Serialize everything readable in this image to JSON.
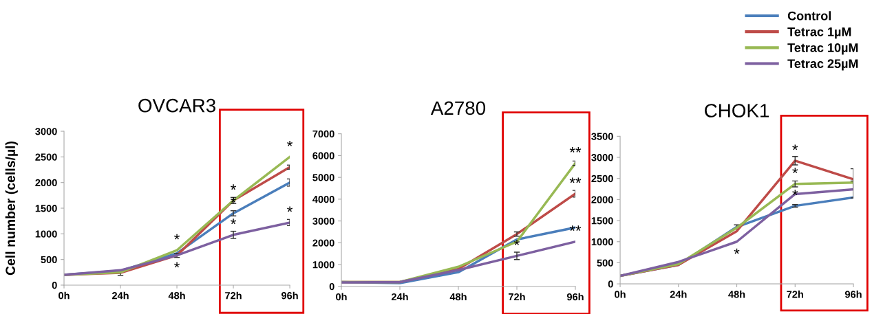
{
  "chart_data": [
    {
      "type": "line",
      "title": "OVCAR3",
      "ylabel": "Cell number (cells/µl)",
      "x": [
        0,
        24,
        48,
        72,
        96
      ],
      "xlim": [
        0,
        96
      ],
      "xticks": [
        {
          "value": 0,
          "label": "0h"
        },
        {
          "value": 24,
          "label": "24h"
        },
        {
          "value": 48,
          "label": "48h"
        },
        {
          "value": 72,
          "label": "72h"
        },
        {
          "value": 96,
          "label": "96h"
        }
      ],
      "ylim": [
        0,
        3000
      ],
      "yticks": [
        0,
        500,
        1000,
        1500,
        2000,
        2500,
        3000
      ],
      "grid": false,
      "legend": "top right",
      "marker": "none",
      "line_style": "solid",
      "series": [
        {
          "name": "Control",
          "color": "#4a7ebb",
          "values": [
            200,
            280,
            620,
            1400,
            2000
          ],
          "errors": [
            null,
            null,
            null,
            50,
            70
          ]
        },
        {
          "name": "Tetrac 1µM",
          "color": "#be4b48",
          "values": [
            200,
            240,
            580,
            1650,
            2300
          ],
          "errors": [
            null,
            50,
            40,
            null,
            40
          ]
        },
        {
          "name": "Tetrac 10µM",
          "color": "#98b954",
          "values": [
            200,
            250,
            680,
            1650,
            2500
          ],
          "errors": [
            null,
            null,
            null,
            60,
            null
          ]
        },
        {
          "name": "Tetrac 25µM",
          "color": "#7d60a0",
          "values": [
            200,
            290,
            580,
            980,
            1220
          ],
          "errors": [
            null,
            null,
            null,
            70,
            60
          ]
        }
      ],
      "annotations": [
        {
          "text": "*",
          "x": 48,
          "y": 680
        },
        {
          "text": "*",
          "x": 48,
          "y": 580
        },
        {
          "text": "*",
          "x": 72,
          "y": 1650
        },
        {
          "text": "*",
          "x": 72,
          "y": 1400
        },
        {
          "text": "*",
          "x": 72,
          "y": 980
        },
        {
          "text": "*",
          "x": 96,
          "y": 2500
        },
        {
          "text": "*",
          "x": 96,
          "y": 1220
        }
      ]
    },
    {
      "type": "line",
      "title": "A2780",
      "x": [
        0,
        24,
        48,
        72,
        96
      ],
      "xlim": [
        0,
        96
      ],
      "xticks": [
        {
          "value": 0,
          "label": "0h"
        },
        {
          "value": 24,
          "label": "24h"
        },
        {
          "value": 48,
          "label": "48h"
        },
        {
          "value": 72,
          "label": "72h"
        },
        {
          "value": 96,
          "label": "96h"
        }
      ],
      "ylim": [
        0,
        7000
      ],
      "yticks": [
        0,
        1000,
        2000,
        3000,
        4000,
        5000,
        6000,
        7000
      ],
      "grid": false,
      "marker": "none",
      "line_style": "solid",
      "series": [
        {
          "color": "#4a7ebb",
          "values": [
            200,
            150,
            650,
            2150,
            2700
          ]
        },
        {
          "color": "#be4b48",
          "values": [
            200,
            200,
            800,
            2400,
            4250
          ],
          "errors": [
            null,
            null,
            null,
            100,
            150
          ]
        },
        {
          "color": "#98b954",
          "values": [
            200,
            200,
            900,
            2050,
            5650
          ],
          "errors": [
            null,
            null,
            null,
            null,
            100
          ]
        },
        {
          "color": "#7d60a0",
          "values": [
            180,
            200,
            750,
            1400,
            2050
          ],
          "errors": [
            null,
            null,
            null,
            170,
            null
          ]
        }
      ],
      "annotations": [
        {
          "text": "*",
          "x": 72,
          "y": 1400
        },
        {
          "text": "**",
          "x": 96,
          "y": 5650
        },
        {
          "text": "**",
          "x": 96,
          "y": 4250
        },
        {
          "text": "**",
          "x": 96,
          "y": 2050
        }
      ]
    },
    {
      "type": "line",
      "title": "CHOK1",
      "x": [
        0,
        24,
        48,
        72,
        96
      ],
      "xlim": [
        0,
        96
      ],
      "xticks": [
        {
          "value": 0,
          "label": "0h"
        },
        {
          "value": 24,
          "label": "24h"
        },
        {
          "value": 48,
          "label": "48h"
        },
        {
          "value": 72,
          "label": "72h"
        },
        {
          "value": 96,
          "label": "96h"
        }
      ],
      "ylim": [
        0,
        3500
      ],
      "yticks": [
        0,
        500,
        1000,
        1500,
        2000,
        2500,
        3000,
        3500
      ],
      "grid": false,
      "marker": "none",
      "line_style": "solid",
      "series": [
        {
          "color": "#4a7ebb",
          "values": [
            190,
            450,
            1350,
            1850,
            2050
          ],
          "errors": [
            null,
            null,
            50,
            30,
            null
          ]
        },
        {
          "color": "#be4b48",
          "values": [
            190,
            450,
            1250,
            2920,
            2480
          ],
          "errors": [
            null,
            null,
            null,
            100,
            250
          ]
        },
        {
          "color": "#98b954",
          "values": [
            190,
            470,
            1330,
            2370,
            2400
          ],
          "errors": [
            null,
            null,
            null,
            70,
            null
          ]
        },
        {
          "color": "#7d60a0",
          "values": [
            190,
            520,
            1000,
            2130,
            2240
          ],
          "errors": [
            null,
            null,
            null,
            null,
            200
          ]
        }
      ],
      "annotations": [
        {
          "text": "*",
          "x": 72,
          "y": 2920
        },
        {
          "text": "*",
          "x": 72,
          "y": 2370
        },
        {
          "text": "*",
          "x": 72,
          "y": 1850
        },
        {
          "text": "*",
          "x": 48,
          "y": 1000
        }
      ]
    }
  ]
}
